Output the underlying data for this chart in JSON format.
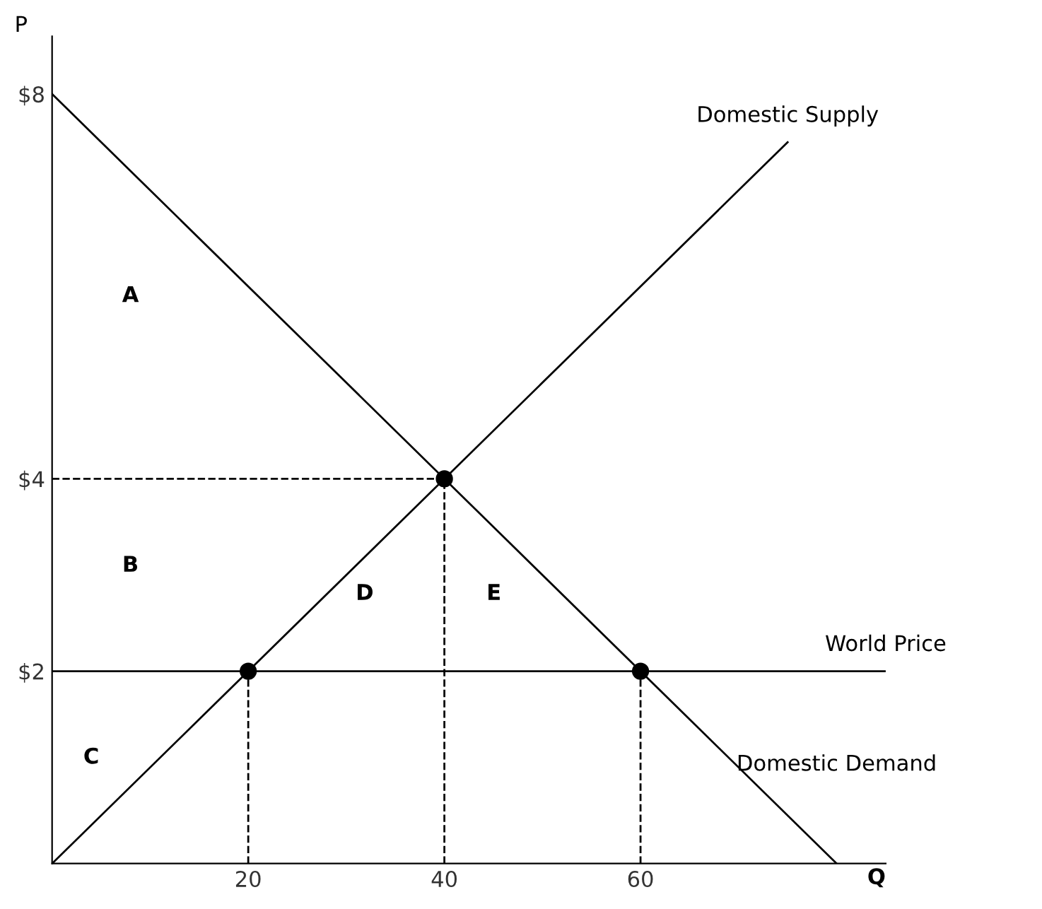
{
  "chart_data": {
    "type": "line",
    "xlabel": "Q",
    "ylabel": "P",
    "xlim": [
      0,
      85
    ],
    "ylim": [
      0,
      8.6
    ],
    "xticks": [
      20,
      40,
      60
    ],
    "yticks": [
      {
        "value": 2,
        "label": "$2"
      },
      {
        "value": 4,
        "label": "$4"
      },
      {
        "value": 8,
        "label": "$8"
      }
    ],
    "grid": false,
    "legend": false,
    "line_style": "solid",
    "marker": "none",
    "series": [
      {
        "name": "Domestic Supply",
        "color": "#000000",
        "x": [
          0,
          75
        ],
        "values": [
          0,
          7.5
        ]
      },
      {
        "name": "Domestic Demand",
        "color": "#000000",
        "x": [
          0,
          80
        ],
        "values": [
          8,
          0
        ]
      },
      {
        "color": "#000000",
        "x": [
          0,
          40
        ],
        "values": [
          4,
          4
        ],
        "line_style": "dashed"
      },
      {
        "color": "#000000",
        "x": [
          40,
          40
        ],
        "values": [
          0,
          4
        ],
        "line_style": "dashed"
      },
      {
        "color": "#000000",
        "x": [
          20,
          20
        ],
        "values": [
          0,
          2
        ],
        "line_style": "dashed"
      },
      {
        "color": "#000000",
        "x": [
          60,
          60
        ],
        "values": [
          0,
          2
        ],
        "line_style": "dashed"
      },
      {
        "type": "scatter",
        "color": "#000000",
        "x": [
          20,
          40,
          60
        ],
        "values": [
          2,
          4,
          2
        ],
        "marker": "circle"
      }
    ],
    "ref_lines": [
      {
        "axis": "y",
        "value": 2,
        "label": "World Price",
        "color": "#000000",
        "line_style": "solid"
      }
    ],
    "annotations": [
      "A",
      "B",
      "C",
      "D",
      "E"
    ]
  }
}
